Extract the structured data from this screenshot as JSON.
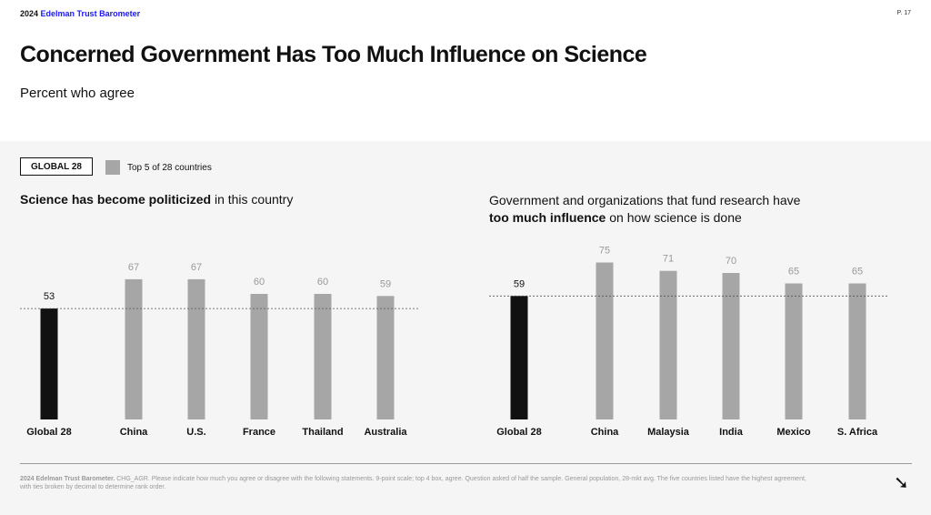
{
  "header": {
    "brand_year": "2024",
    "brand_name": "Edelman Trust Barometer",
    "page": "P. 17"
  },
  "title": "Concerned Government Has Too Much Influence on Science",
  "subtitle": "Percent who agree",
  "legend": {
    "global": "GLOBAL 28",
    "top5": "Top 5 of 28 countries"
  },
  "colors": {
    "global": "#111111",
    "country": "#a6a6a6",
    "brand": "#1a1aff"
  },
  "chart_data": [
    {
      "type": "bar",
      "title_bold": "Science has become politicized",
      "title_rest": " in this country",
      "categories": [
        "Global 28",
        "China",
        "U.S.",
        "France",
        "Thailand",
        "Australia"
      ],
      "values": [
        53,
        67,
        67,
        60,
        60,
        59
      ],
      "ylim": [
        0,
        100
      ]
    },
    {
      "type": "bar",
      "title_line1": "Government and organizations that fund research have",
      "title_bold": "too much influence",
      "title_rest": " on how science is done",
      "categories": [
        "Global 28",
        "China",
        "Malaysia",
        "India",
        "Mexico",
        "S. Africa"
      ],
      "values": [
        59,
        75,
        71,
        70,
        65,
        65
      ],
      "ylim": [
        0,
        100
      ]
    }
  ],
  "footer": {
    "source_bold": "2024 Edelman Trust Barometer.",
    "source_text": " CHG_AGR. Please indicate how much you agree or disagree with the following statements. 9-point scale; top 4 box, agree. Question asked of half the sample. General population, 28-mkt avg. The five countries listed have the highest agreement, with ties broken by decimal to determine rank order.",
    "next_icon": "arrow-down-right"
  }
}
